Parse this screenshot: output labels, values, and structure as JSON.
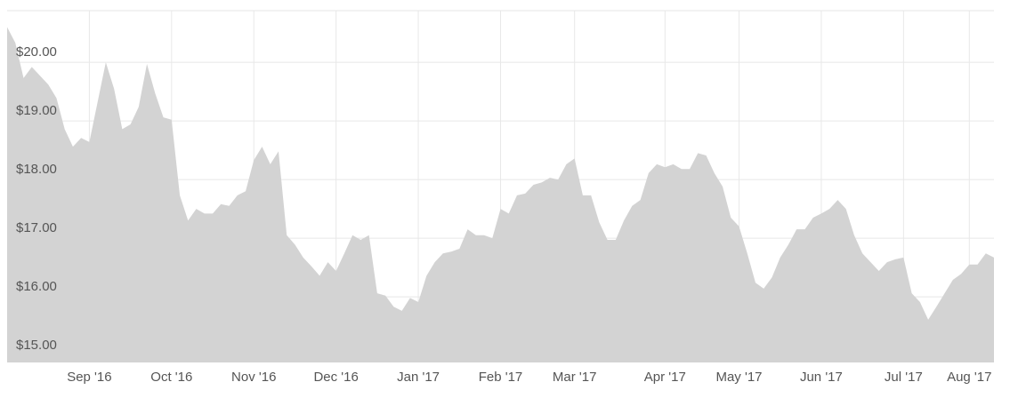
{
  "chart_data": {
    "type": "area",
    "color": "#d3d3d3",
    "grid": true,
    "categories": [
      null,
      null,
      null,
      null,
      null,
      null,
      null,
      null,
      null,
      null,
      "Sep '16",
      null,
      null,
      null,
      null,
      null,
      null,
      null,
      null,
      null,
      "Oct '16",
      null,
      null,
      null,
      null,
      null,
      null,
      null,
      null,
      null,
      "Nov '16",
      null,
      null,
      null,
      null,
      null,
      null,
      null,
      null,
      null,
      "Dec '16",
      null,
      null,
      null,
      null,
      null,
      null,
      null,
      null,
      null,
      "Jan '17",
      null,
      null,
      null,
      null,
      null,
      null,
      null,
      null,
      null,
      "Feb '17",
      null,
      null,
      null,
      null,
      null,
      null,
      null,
      null,
      "Mar '17",
      null,
      null,
      null,
      null,
      null,
      null,
      null,
      null,
      null,
      null,
      "Apr '17",
      null,
      null,
      null,
      null,
      null,
      null,
      null,
      null,
      "May '17",
      null,
      null,
      null,
      null,
      null,
      null,
      null,
      null,
      null,
      "Jun '17",
      null,
      null,
      null,
      null,
      null,
      null,
      null,
      null,
      null,
      "Jul '17",
      null,
      null,
      null,
      null,
      null,
      null,
      null,
      "Aug '17",
      null,
      null,
      null
    ],
    "values": [
      20.6,
      20.33,
      19.73,
      19.92,
      19.77,
      19.62,
      19.39,
      18.86,
      18.56,
      18.71,
      18.64,
      19.32,
      20.0,
      19.55,
      18.86,
      18.94,
      19.24,
      19.97,
      19.47,
      19.06,
      19.02,
      17.73,
      17.3,
      17.5,
      17.42,
      17.42,
      17.58,
      17.55,
      17.73,
      17.8,
      18.33,
      18.56,
      18.26,
      18.48,
      17.05,
      16.89,
      16.67,
      16.52,
      16.36,
      16.59,
      16.44,
      16.74,
      17.05,
      16.97,
      17.05,
      16.06,
      16.02,
      15.83,
      15.76,
      15.98,
      15.91,
      16.36,
      16.59,
      16.74,
      16.77,
      16.82,
      17.15,
      17.05,
      17.05,
      17.0,
      17.5,
      17.42,
      17.73,
      17.76,
      17.91,
      17.95,
      18.03,
      18.0,
      18.26,
      18.36,
      17.73,
      17.73,
      17.27,
      16.97,
      16.97,
      17.3,
      17.55,
      17.65,
      18.11,
      18.26,
      18.21,
      18.26,
      18.18,
      18.18,
      18.45,
      18.41,
      18.11,
      17.88,
      17.35,
      17.2,
      16.74,
      16.24,
      16.14,
      16.33,
      16.67,
      16.89,
      17.15,
      17.15,
      17.35,
      17.42,
      17.5,
      17.65,
      17.5,
      17.05,
      16.74,
      16.59,
      16.44,
      16.59,
      16.64,
      16.67,
      16.06,
      15.91,
      15.61,
      15.83,
      16.06,
      16.29,
      16.39,
      16.55,
      16.55,
      16.74,
      16.67
    ],
    "ylim": [
      14.88,
      20.88
    ],
    "yticks": [
      {
        "value": 15,
        "label": "$15.00"
      },
      {
        "value": 16,
        "label": "$16.00"
      },
      {
        "value": 17,
        "label": "$17.00"
      },
      {
        "value": 18,
        "label": "$18.00"
      },
      {
        "value": 19,
        "label": "$19.00"
      },
      {
        "value": 20,
        "label": "$20.00"
      }
    ]
  }
}
